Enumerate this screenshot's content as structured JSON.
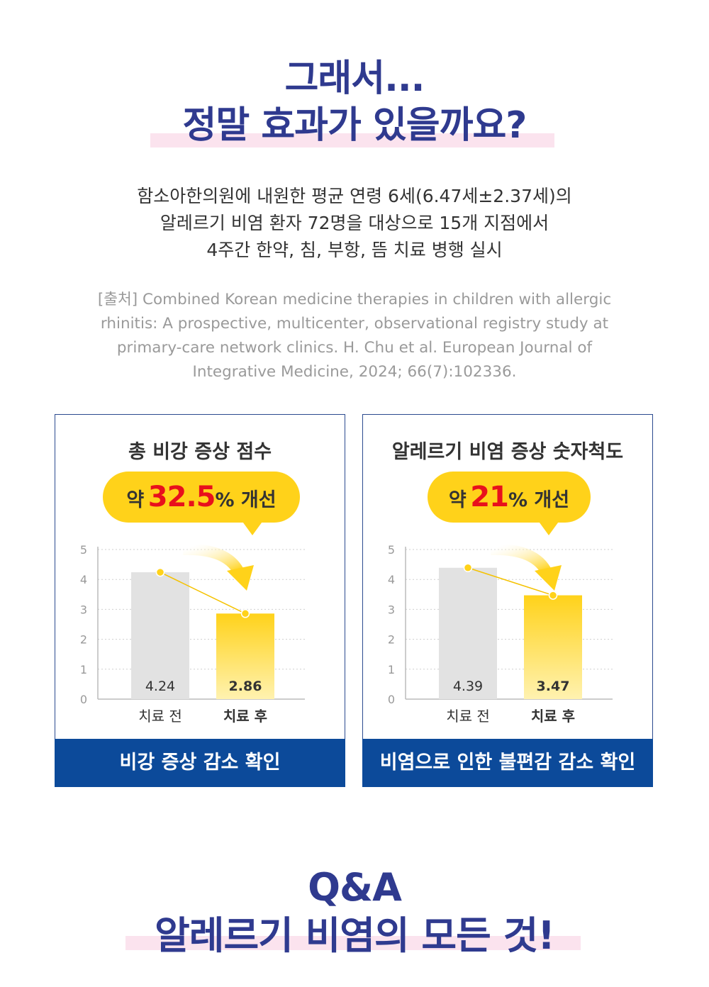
{
  "headline": {
    "line1": "그래서...",
    "line2": "정말 효과가 있을까요?"
  },
  "description": [
    "함소아한의원에 내원한 평균 연령 6세(6.47세±2.37세)의",
    "알레르기 비염 환자 72명을 대상으로 15개 지점에서",
    "4주간 한약, 침, 부항, 뜸 치료 병행 실시"
  ],
  "source": [
    "[출처] Combined Korean medicine therapies in children with allergic",
    "rhinitis: A prospective, multicenter, observational registry study at",
    "primary-care network clinics. H. Chu et al. European Journal of",
    "Integrative Medicine, 2024; 66(7):102336."
  ],
  "cards": [
    {
      "title": "총 비강 증상 점수",
      "bubble_pre": "약",
      "bubble_num": "32.5",
      "bubble_post": "% 개선",
      "footer": "비강 증상 감소 확인"
    },
    {
      "title": "알레르기 비염 증상 숫자척도",
      "bubble_pre": "약",
      "bubble_num": "21",
      "bubble_post": "% 개선",
      "footer": "비염으로 인한 불편감 감소 확인"
    }
  ],
  "chart_data": [
    {
      "type": "bar",
      "title": "총 비강 증상 점수",
      "categories": [
        "치료 전",
        "치료 후"
      ],
      "values": [
        4.24,
        2.86
      ],
      "value_labels": [
        "4.24",
        "2.86"
      ],
      "ylim": [
        0,
        5
      ],
      "yticks": [
        "0",
        "1",
        "2",
        "3",
        "4",
        "5"
      ],
      "grid": true,
      "colors": [
        "#e2e2e2",
        "#ffd21a"
      ]
    },
    {
      "type": "bar",
      "title": "알레르기 비염 증상 숫자척도",
      "categories": [
        "치료 전",
        "치료 후"
      ],
      "values": [
        4.39,
        3.47
      ],
      "value_labels": [
        "4.39",
        "3.47"
      ],
      "ylim": [
        0,
        5
      ],
      "yticks": [
        "0",
        "1",
        "2",
        "3",
        "4",
        "5"
      ],
      "grid": true,
      "colors": [
        "#e2e2e2",
        "#ffd21a"
      ]
    }
  ],
  "qa": {
    "line1": "Q&A",
    "line2": "알레르기 비염의 모든 것!"
  },
  "colors": {
    "headline": "#2f3a8f",
    "highlight": "#fbe3ee",
    "accent_yellow": "#ffd21a",
    "accent_red": "#e8101c",
    "footer_blue": "#0c4a9a"
  }
}
